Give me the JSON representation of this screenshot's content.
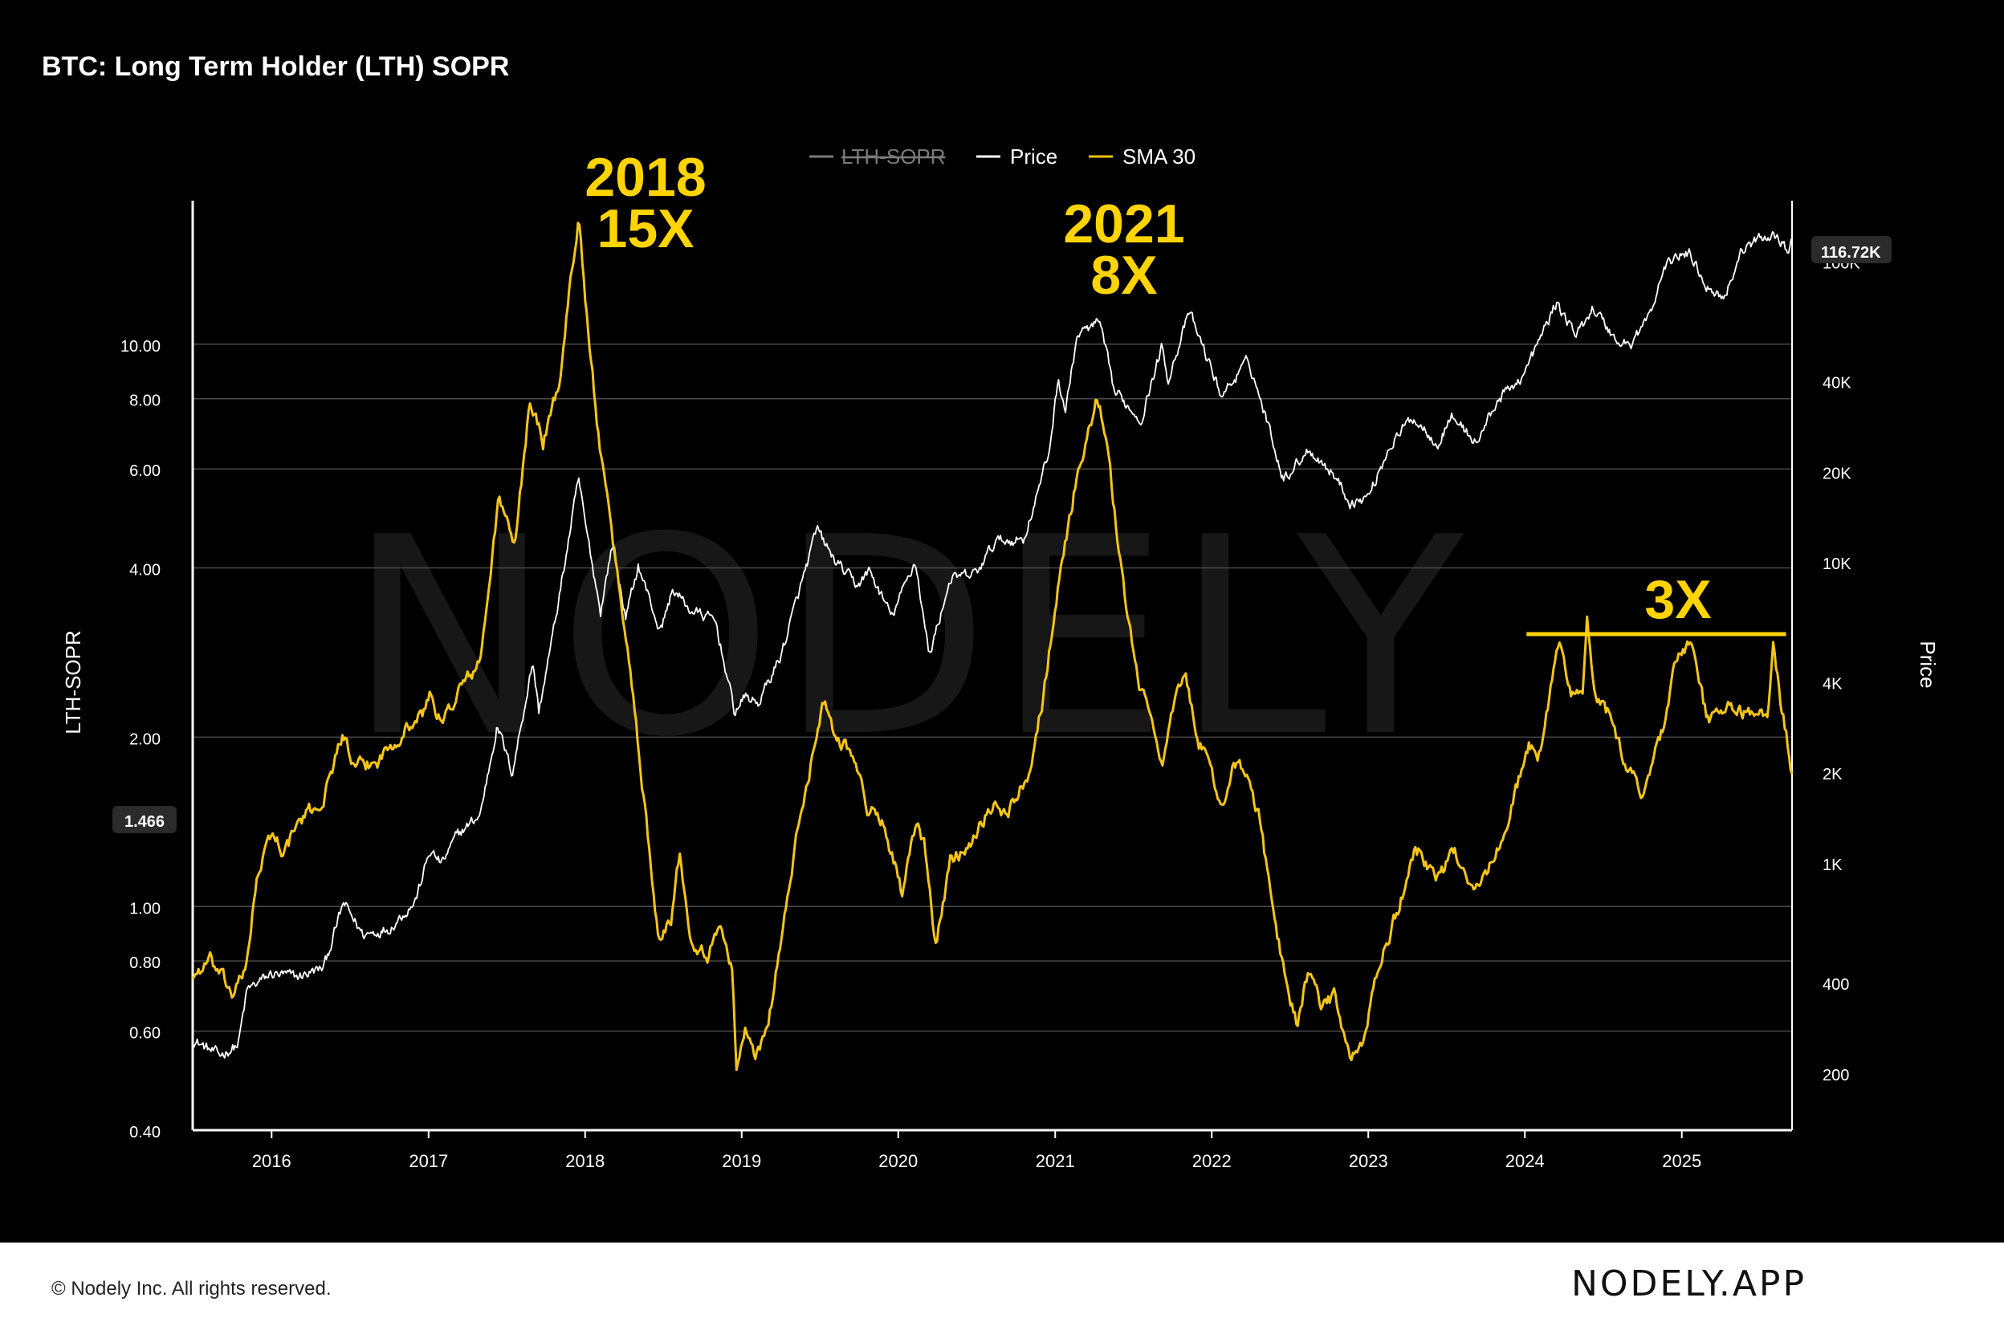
{
  "chart_data": {
    "type": "line",
    "title": "BTC: Long Term Holder (LTH) SOPR",
    "ylabel_left": "LTH-SOPR",
    "ylabel_right": "Price",
    "x_range": [
      "2015-07-01",
      "2025-09-15"
    ],
    "x_ticks": [
      "2016",
      "2017",
      "2018",
      "2019",
      "2020",
      "2021",
      "2022",
      "2023",
      "2024",
      "2025"
    ],
    "y_left_scale": "log",
    "y_left_range": [
      0.4,
      18
    ],
    "y_left_ticks": [
      "0.40",
      "0.60",
      "0.80",
      "1.00",
      "2.00",
      "4.00",
      "6.00",
      "8.00",
      "10.00"
    ],
    "y_right_scale": "log",
    "y_right_range": [
      130,
      160000
    ],
    "y_right_ticks": [
      "200",
      "400",
      "1K",
      "2K",
      "4K",
      "10K",
      "20K",
      "40K",
      "100K"
    ],
    "current_sopr_label": "1.466",
    "current_price_label": "116.72K",
    "grid": "horizontal",
    "legend_position": "top-center",
    "legend": [
      {
        "name": "LTH-SOPR",
        "color": "#7a7a7a",
        "hidden": true
      },
      {
        "name": "Price",
        "color": "#ffffff",
        "hidden": false
      },
      {
        "name": "SMA 30",
        "color": "#f5c518",
        "hidden": false
      }
    ],
    "watermark": "NODELY",
    "series": [
      {
        "name": "Price",
        "axis": "right",
        "color": "#ffffff",
        "points": [
          [
            "2015-07-01",
            260
          ],
          [
            "2015-09-01",
            230
          ],
          [
            "2015-10-15",
            250
          ],
          [
            "2015-11-05",
            380
          ],
          [
            "2016-01-01",
            430
          ],
          [
            "2016-03-01",
            420
          ],
          [
            "2016-05-01",
            450
          ],
          [
            "2016-06-17",
            740
          ],
          [
            "2016-08-01",
            580
          ],
          [
            "2016-10-01",
            610
          ],
          [
            "2016-12-01",
            750
          ],
          [
            "2017-01-04",
            1100
          ],
          [
            "2017-02-01",
            1000
          ],
          [
            "2017-03-10",
            1250
          ],
          [
            "2017-05-01",
            1450
          ],
          [
            "2017-06-10",
            2900
          ],
          [
            "2017-07-15",
            2000
          ],
          [
            "2017-09-01",
            4700
          ],
          [
            "2017-09-15",
            3200
          ],
          [
            "2017-10-20",
            6000
          ],
          [
            "2017-12-17",
            19000
          ],
          [
            "2018-01-01",
            13500
          ],
          [
            "2018-02-06",
            6900
          ],
          [
            "2018-03-05",
            11500
          ],
          [
            "2018-04-06",
            6600
          ],
          [
            "2018-05-05",
            9800
          ],
          [
            "2018-06-25",
            5900
          ],
          [
            "2018-07-25",
            8200
          ],
          [
            "2018-09-01",
            7000
          ],
          [
            "2018-11-01",
            6400
          ],
          [
            "2018-12-15",
            3200
          ],
          [
            "2019-01-10",
            3600
          ],
          [
            "2019-02-08",
            3400
          ],
          [
            "2019-04-02",
            4900
          ],
          [
            "2019-05-15",
            8000
          ],
          [
            "2019-06-26",
            12900
          ],
          [
            "2019-08-01",
            10400
          ],
          [
            "2019-09-25",
            8400
          ],
          [
            "2019-10-26",
            9400
          ],
          [
            "2019-12-17",
            6600
          ],
          [
            "2020-02-10",
            10200
          ],
          [
            "2020-03-13",
            4900
          ],
          [
            "2020-05-01",
            8800
          ],
          [
            "2020-07-01",
            9200
          ],
          [
            "2020-08-15",
            11800
          ],
          [
            "2020-10-20",
            12000
          ],
          [
            "2020-12-17",
            23000
          ],
          [
            "2021-01-08",
            41000
          ],
          [
            "2021-01-25",
            32000
          ],
          [
            "2021-02-21",
            57000
          ],
          [
            "2021-04-14",
            63000
          ],
          [
            "2021-05-19",
            37000
          ],
          [
            "2021-07-20",
            30000
          ],
          [
            "2021-09-06",
            52000
          ],
          [
            "2021-09-21",
            41000
          ],
          [
            "2021-11-10",
            68000
          ],
          [
            "2022-01-24",
            36000
          ],
          [
            "2022-03-28",
            47000
          ],
          [
            "2022-05-12",
            29000
          ],
          [
            "2022-06-18",
            19000
          ],
          [
            "2022-08-15",
            24000
          ],
          [
            "2022-10-15",
            19500
          ],
          [
            "2022-11-21",
            15800
          ],
          [
            "2023-01-01",
            16600
          ],
          [
            "2023-02-20",
            24500
          ],
          [
            "2023-04-14",
            30500
          ],
          [
            "2023-06-15",
            25000
          ],
          [
            "2023-07-13",
            31000
          ],
          [
            "2023-09-11",
            25000
          ],
          [
            "2023-10-25",
            34000
          ],
          [
            "2023-12-31",
            42500
          ],
          [
            "2024-03-14",
            73000
          ],
          [
            "2024-05-01",
            57000
          ],
          [
            "2024-06-07",
            71000
          ],
          [
            "2024-08-05",
            54000
          ],
          [
            "2024-09-06",
            53500
          ],
          [
            "2024-10-30",
            72000
          ],
          [
            "2024-11-12",
            89000
          ],
          [
            "2024-12-17",
            106000
          ],
          [
            "2025-01-21",
            106000
          ],
          [
            "2025-02-28",
            84000
          ],
          [
            "2025-04-08",
            76000
          ],
          [
            "2025-05-22",
            110000
          ],
          [
            "2025-07-14",
            122000
          ],
          [
            "2025-08-14",
            123000
          ],
          [
            "2025-09-01",
            109000
          ],
          [
            "2025-09-15",
            116720
          ]
        ]
      },
      {
        "name": "SMA 30",
        "axis": "left",
        "color": "#f5c518",
        "points": [
          [
            "2015-07-01",
            0.75
          ],
          [
            "2015-08-10",
            0.8
          ],
          [
            "2015-10-01",
            0.7
          ],
          [
            "2015-11-01",
            0.76
          ],
          [
            "2015-11-25",
            1.1
          ],
          [
            "2016-01-01",
            1.35
          ],
          [
            "2016-02-01",
            1.25
          ],
          [
            "2016-03-01",
            1.4
          ],
          [
            "2016-05-01",
            1.55
          ],
          [
            "2016-06-15",
            2.05
          ],
          [
            "2016-07-10",
            1.75
          ],
          [
            "2016-09-01",
            1.8
          ],
          [
            "2016-11-01",
            2.05
          ],
          [
            "2016-12-20",
            2.2
          ],
          [
            "2017-01-05",
            2.4
          ],
          [
            "2017-02-01",
            2.1
          ],
          [
            "2017-03-15",
            2.45
          ],
          [
            "2017-05-01",
            2.7
          ],
          [
            "2017-06-15",
            5.4
          ],
          [
            "2017-07-20",
            4.3
          ],
          [
            "2017-08-25",
            8.0
          ],
          [
            "2017-09-25",
            6.7
          ],
          [
            "2017-11-01",
            8.5
          ],
          [
            "2017-12-17",
            17.2
          ],
          [
            "2018-01-10",
            10.0
          ],
          [
            "2018-02-10",
            6.0
          ],
          [
            "2018-03-15",
            4.0
          ],
          [
            "2018-04-20",
            2.5
          ],
          [
            "2018-05-20",
            1.5
          ],
          [
            "2018-06-20",
            0.9
          ],
          [
            "2018-07-20",
            0.95
          ],
          [
            "2018-08-10",
            1.25
          ],
          [
            "2018-09-05",
            0.88
          ],
          [
            "2018-10-15",
            0.82
          ],
          [
            "2018-11-15",
            0.93
          ],
          [
            "2018-12-10",
            0.78
          ],
          [
            "2018-12-20",
            0.5
          ],
          [
            "2019-01-10",
            0.62
          ],
          [
            "2019-02-01",
            0.53
          ],
          [
            "2019-03-01",
            0.6
          ],
          [
            "2019-04-10",
            0.95
          ],
          [
            "2019-05-15",
            1.4
          ],
          [
            "2019-06-20",
            1.95
          ],
          [
            "2019-07-10",
            2.35
          ],
          [
            "2019-08-10",
            2.0
          ],
          [
            "2019-09-15",
            1.9
          ],
          [
            "2019-10-20",
            1.5
          ],
          [
            "2019-12-01",
            1.4
          ],
          [
            "2020-01-10",
            1.05
          ],
          [
            "2020-02-10",
            1.38
          ],
          [
            "2020-03-01",
            1.3
          ],
          [
            "2020-03-28",
            0.85
          ],
          [
            "2020-05-01",
            1.2
          ],
          [
            "2020-06-15",
            1.3
          ],
          [
            "2020-08-01",
            1.5
          ],
          [
            "2020-09-15",
            1.48
          ],
          [
            "2020-11-01",
            1.75
          ],
          [
            "2020-12-01",
            2.3
          ],
          [
            "2021-01-10",
            3.8
          ],
          [
            "2021-02-20",
            5.8
          ],
          [
            "2021-04-05",
            7.8
          ],
          [
            "2021-04-25",
            7.2
          ],
          [
            "2021-05-20",
            5.0
          ],
          [
            "2021-06-20",
            3.2
          ],
          [
            "2021-07-20",
            2.4
          ],
          [
            "2021-08-15",
            2.15
          ],
          [
            "2021-09-10",
            1.8
          ],
          [
            "2021-10-01",
            2.2
          ],
          [
            "2021-10-30",
            2.6
          ],
          [
            "2021-11-30",
            2.0
          ],
          [
            "2022-01-01",
            1.7
          ],
          [
            "2022-01-25",
            1.5
          ],
          [
            "2022-02-20",
            1.8
          ],
          [
            "2022-03-25",
            1.7
          ],
          [
            "2022-04-20",
            1.45
          ],
          [
            "2022-05-15",
            1.1
          ],
          [
            "2022-06-20",
            0.75
          ],
          [
            "2022-07-20",
            0.62
          ],
          [
            "2022-08-15",
            0.78
          ],
          [
            "2022-09-15",
            0.65
          ],
          [
            "2022-10-15",
            0.7
          ],
          [
            "2022-11-21",
            0.52
          ],
          [
            "2022-12-20",
            0.58
          ],
          [
            "2023-01-25",
            0.78
          ],
          [
            "2023-03-15",
            1.0
          ],
          [
            "2023-04-20",
            1.28
          ],
          [
            "2023-06-15",
            1.12
          ],
          [
            "2023-07-20",
            1.25
          ],
          [
            "2023-09-10",
            1.08
          ],
          [
            "2023-10-25",
            1.22
          ],
          [
            "2023-12-15",
            1.65
          ],
          [
            "2024-01-10",
            1.95
          ],
          [
            "2024-02-01",
            1.8
          ],
          [
            "2024-03-20",
            2.95
          ],
          [
            "2024-04-20",
            2.4
          ],
          [
            "2024-05-15",
            2.4
          ],
          [
            "2024-05-25",
            3.2
          ],
          [
            "2024-06-15",
            2.3
          ],
          [
            "2024-07-15",
            2.2
          ],
          [
            "2024-08-20",
            1.8
          ],
          [
            "2024-10-01",
            1.6
          ],
          [
            "2024-11-20",
            2.1
          ],
          [
            "2024-12-15",
            2.7
          ],
          [
            "2025-01-20",
            2.95
          ],
          [
            "2025-03-01",
            2.15
          ],
          [
            "2025-04-20",
            2.25
          ],
          [
            "2025-06-20",
            2.2
          ],
          [
            "2025-07-20",
            2.15
          ],
          [
            "2025-08-01",
            3.0
          ],
          [
            "2025-08-20",
            2.3
          ],
          [
            "2025-09-15",
            1.75
          ]
        ]
      }
    ],
    "annotations": [
      {
        "text_lines": [
          "2018",
          "15X"
        ],
        "color": "#ffd400"
      },
      {
        "text_lines": [
          "2021",
          "8X"
        ],
        "color": "#ffd400"
      },
      {
        "text_lines": [
          "3X"
        ],
        "color": "#ffd400"
      }
    ],
    "reference_line": {
      "value": 3.05,
      "from": "2024-01-05",
      "to": "2025-09-01",
      "color": "#ffd400"
    }
  },
  "footer": {
    "copyright": "© Nodely Inc. All rights reserved.",
    "brand": "NODELY.APP"
  }
}
